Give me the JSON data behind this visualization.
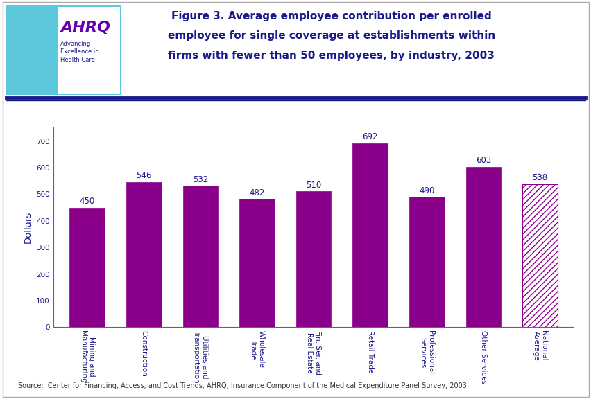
{
  "categories": [
    "Mining and\nManufacturing",
    "Construction",
    "Utilities and\nTransportation",
    "Wholesale\nTrade",
    "Fin. Ser. and\nReal Estate",
    "Retail Trade",
    "Professional\nServices",
    "Other Services",
    "National\nAverage"
  ],
  "values": [
    450,
    546,
    532,
    482,
    510,
    692,
    490,
    603,
    538
  ],
  "bar_color_solid": "#8B008B",
  "hatch_bar_index": 8,
  "hatch_pattern": "////",
  "hatch_facecolor": "#ffffff",
  "hatch_edgecolor": "#8B008B",
  "title": "Figure 3. Average employee contribution per enrolled\nemployee for single coverage at establishments within\nfirms with fewer than 50 employees, by industry, 2003",
  "ylabel": "Dollars",
  "ylim": [
    0,
    750
  ],
  "yticks": [
    0,
    100,
    200,
    300,
    400,
    500,
    600,
    700
  ],
  "source_text": "Source:  Center for Financing, Access, and Cost Trends, AHRQ, Insurance Component of the Medical Expenditure Panel Survey, 2003",
  "title_color": "#1a1a8c",
  "value_label_color": "#1a1a8c",
  "axis_label_color": "#1a1a8c",
  "tick_label_color": "#1a1a8c",
  "chart_bg": "#ffffff",
  "fig_bg": "#ffffff",
  "border_color": "#1a1a8c",
  "value_fontsize": 8.5,
  "tick_fontsize": 7.5,
  "ylabel_fontsize": 9.5,
  "title_fontsize": 11,
  "source_fontsize": 7
}
